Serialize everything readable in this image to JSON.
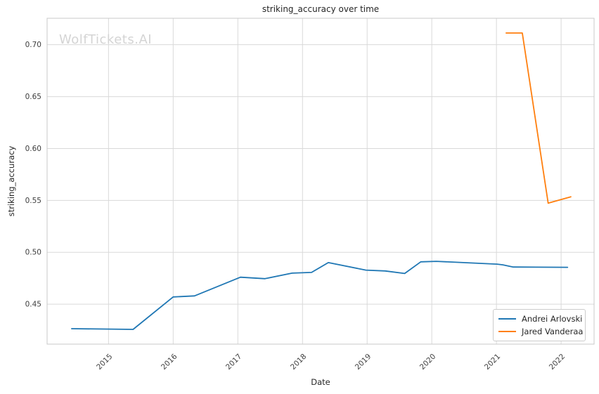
{
  "watermark": "WolfTickets.AI",
  "colors": {
    "background": "#ffffff",
    "grid": "#d9d9d9",
    "spine": "#c9c9c9",
    "title_text": "#262626",
    "tick_text": "#3d3d3d",
    "watermark_text": "#d4d4d4",
    "legend_border": "#cccccc"
  },
  "chart_data": {
    "type": "line",
    "title": "striking_accuracy over time",
    "xlabel": "Date",
    "ylabel": "striking_accuracy",
    "grid": true,
    "legend_position": "lower right",
    "xlim": [
      2014.05,
      2022.51
    ],
    "ylim": [
      0.4115,
      0.7255
    ],
    "x_ticks": [
      2015,
      2016,
      2017,
      2018,
      2019,
      2020,
      2021,
      2022
    ],
    "x_tick_labels": [
      "2015",
      "2016",
      "2017",
      "2018",
      "2019",
      "2020",
      "2021",
      "2022"
    ],
    "y_ticks": [
      0.45,
      0.5,
      0.55,
      0.6,
      0.65,
      0.7
    ],
    "y_tick_labels": [
      "0.45",
      "0.50",
      "0.55",
      "0.60",
      "0.65",
      "0.70"
    ],
    "series": [
      {
        "name": "Andrei Arlovski",
        "color": "#1f77b4",
        "x": [
          2014.43,
          2015.38,
          2016.0,
          2016.33,
          2017.04,
          2017.42,
          2017.84,
          2018.14,
          2018.4,
          2018.98,
          2019.28,
          2019.58,
          2019.83,
          2020.07,
          2021.01,
          2021.1,
          2021.26,
          2022.1
        ],
        "y": [
          0.4264,
          0.4257,
          0.457,
          0.458,
          0.476,
          0.4746,
          0.4799,
          0.4806,
          0.4901,
          0.4828,
          0.482,
          0.4796,
          0.4908,
          0.4913,
          0.4886,
          0.4879,
          0.4858,
          0.4855
        ]
      },
      {
        "name": "Jared Vanderaa",
        "color": "#ff7f0e",
        "x": [
          2021.15,
          2021.4,
          2021.8,
          2022.15
        ],
        "y": [
          0.7113,
          0.7113,
          0.5473,
          0.5535
        ]
      }
    ]
  }
}
